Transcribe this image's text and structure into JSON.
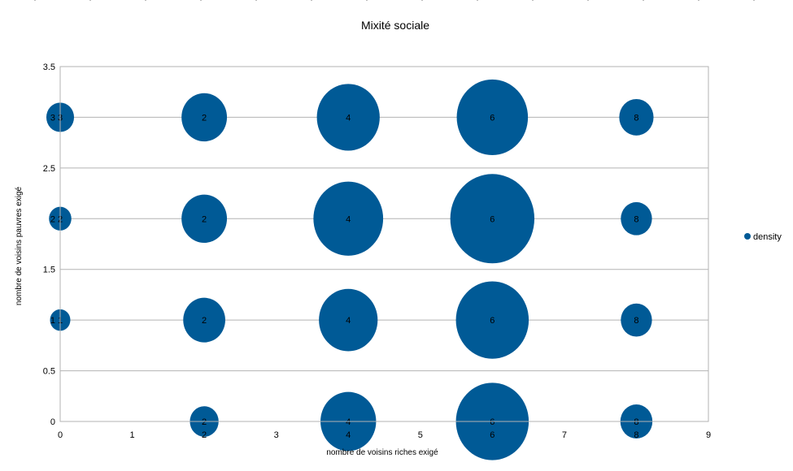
{
  "chart_data": {
    "type": "scatter",
    "title": "Mixité sociale",
    "xlabel": "nombre de voisins riches exigé",
    "ylabel": "nombre de voisins pauvres exigé",
    "xlim": [
      0,
      9
    ],
    "ylim": [
      0,
      3.5
    ],
    "x_ticks": [
      "0",
      "1",
      "2",
      "3",
      "4",
      "5",
      "6",
      "7",
      "8",
      "9"
    ],
    "y_ticks": [
      "0",
      "0.5",
      "1",
      "1.5",
      "2",
      "2.5",
      "3",
      "3.5"
    ],
    "grid": "horizontal",
    "legend_position": "right",
    "series": [
      {
        "name": "density",
        "color": "#005a96",
        "points": [
          {
            "x": 0,
            "y": 1,
            "size": 14,
            "label": "1"
          },
          {
            "x": 0,
            "y": 2,
            "size": 17,
            "label": "2"
          },
          {
            "x": 0,
            "y": 3,
            "size": 26,
            "label": "3"
          },
          {
            "x": 2,
            "y": 0,
            "size": 28,
            "label": "2"
          },
          {
            "x": 2,
            "y": 1,
            "size": 60,
            "label": "2"
          },
          {
            "x": 2,
            "y": 2,
            "size": 70,
            "label": "2"
          },
          {
            "x": 2,
            "y": 3,
            "size": 70,
            "label": "2"
          },
          {
            "x": 4,
            "y": 0,
            "size": 105,
            "label": "4"
          },
          {
            "x": 4,
            "y": 1,
            "size": 117,
            "label": "4"
          },
          {
            "x": 4,
            "y": 2,
            "size": 165,
            "label": "4"
          },
          {
            "x": 4,
            "y": 3,
            "size": 134,
            "label": "4"
          },
          {
            "x": 6,
            "y": 0,
            "size": 180,
            "label": "6"
          },
          {
            "x": 6,
            "y": 1,
            "size": 180,
            "label": "6"
          },
          {
            "x": 6,
            "y": 2,
            "size": 240,
            "label": "6"
          },
          {
            "x": 6,
            "y": 3,
            "size": 172,
            "label": "6"
          },
          {
            "x": 8,
            "y": 0,
            "size": 35,
            "label": "8"
          },
          {
            "x": 8,
            "y": 1,
            "size": 33,
            "label": "8"
          },
          {
            "x": 8,
            "y": 2,
            "size": 33,
            "label": "8"
          },
          {
            "x": 8,
            "y": 3,
            "size": 40,
            "label": "8"
          }
        ]
      }
    ]
  }
}
